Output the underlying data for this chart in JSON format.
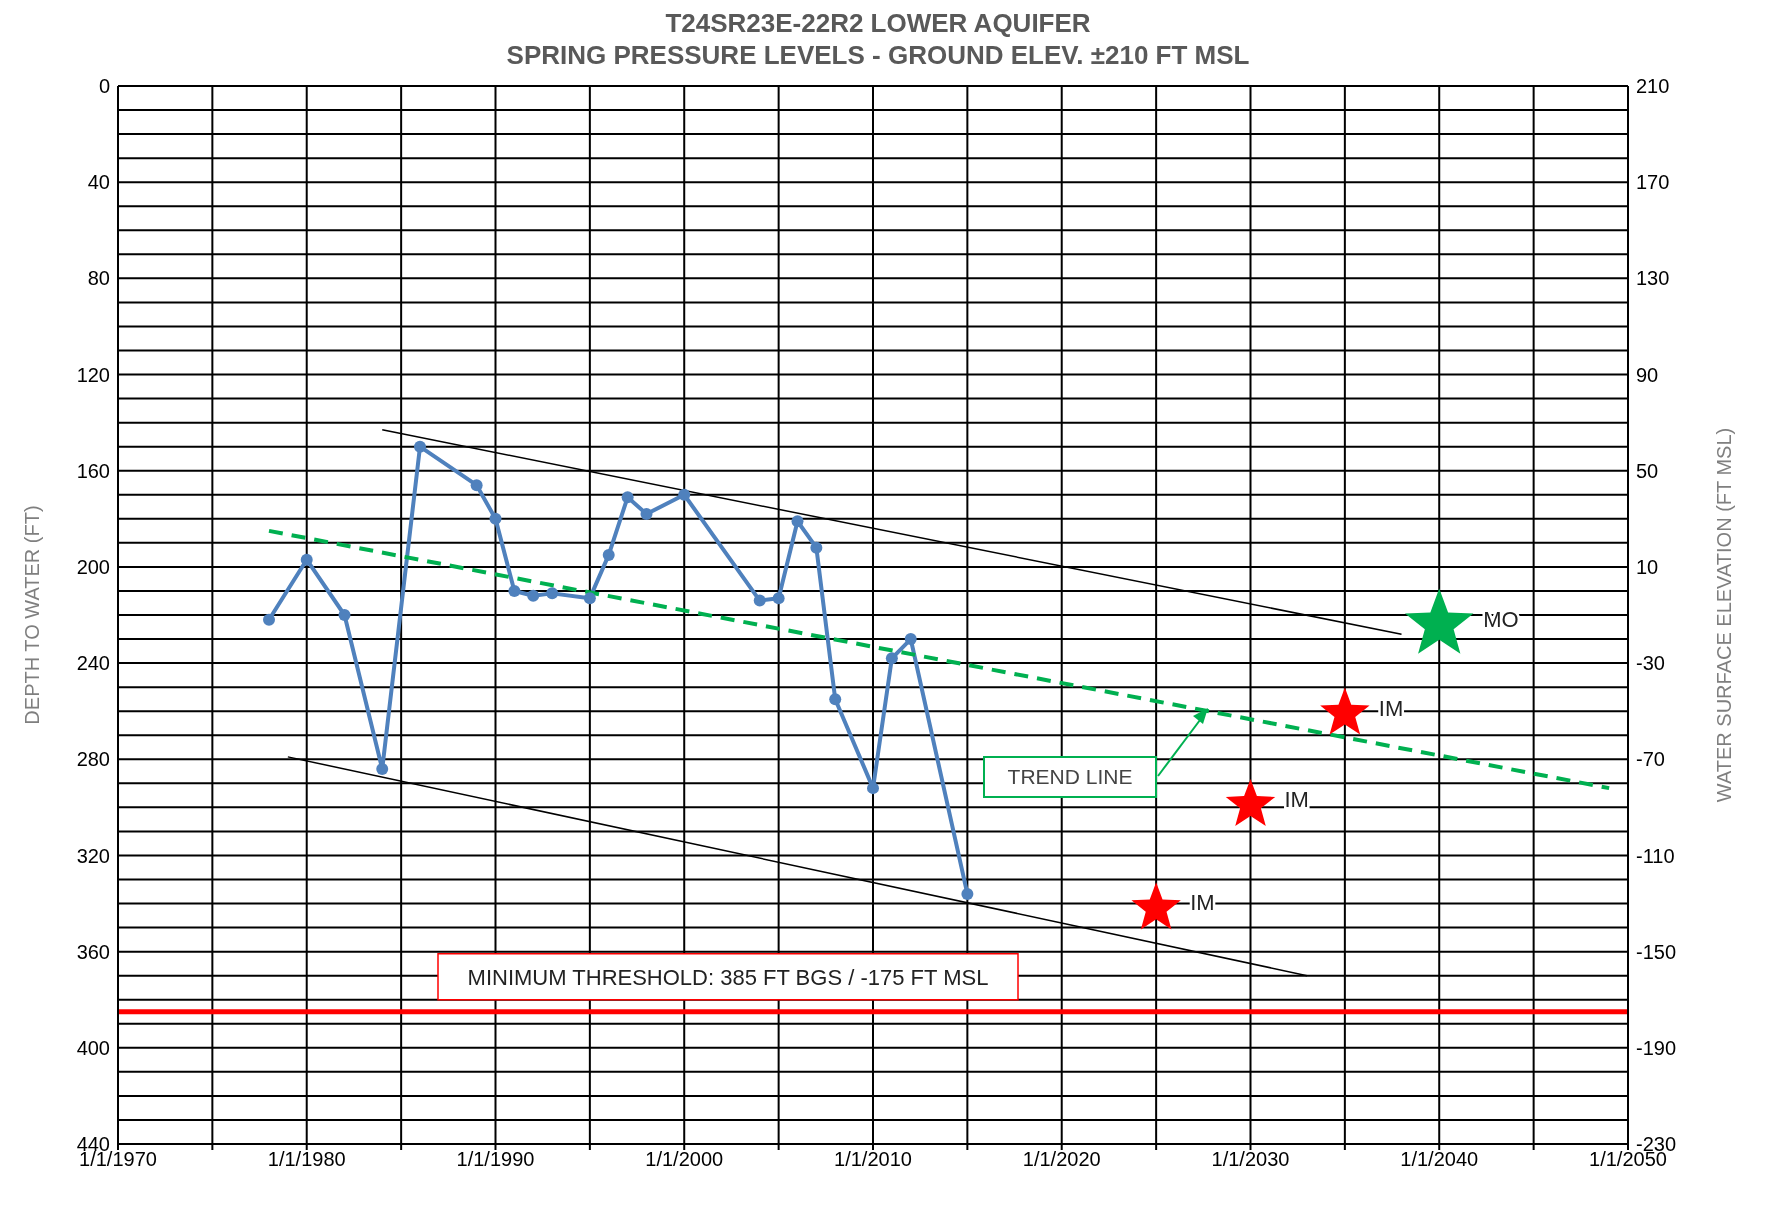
{
  "chart_data": {
    "type": "line",
    "title": "T24SR23E-22R2  LOWER AQUIFER",
    "subtitle": "SPRING PRESSURE LEVELS  - GROUND ELEV. ±210 FT MSL",
    "ylabel": "DEPTH TO WATER (FT)",
    "y2label": "WATER SURFACE ELEVATION (FT MSL)",
    "series": [
      {
        "color": "#4f81bd",
        "marker": "circle",
        "x": [
          "1978",
          "1980",
          "1982",
          "1984",
          "1986",
          "1989",
          "1990",
          "1991",
          "1992",
          "1993",
          "1995",
          "1996",
          "1997",
          "1998",
          "2000",
          "2004",
          "2005",
          "2006",
          "2007",
          "2008",
          "2010",
          "2011",
          "2012",
          "2015"
        ],
        "values": [
          222,
          197,
          220,
          284,
          150,
          166,
          180,
          210,
          212,
          211,
          213,
          195,
          171,
          178,
          170,
          214,
          213,
          181,
          192,
          255,
          292,
          238,
          230,
          336
        ]
      },
      {
        "color": "#00b050",
        "marker": "none",
        "line_style": "dashed",
        "x": [
          "1978",
          "2049"
        ],
        "values": [
          185,
          292
        ]
      },
      {
        "color": "#000000",
        "marker": "none",
        "x": [
          "1984",
          "2038"
        ],
        "values": [
          143,
          228
        ]
      },
      {
        "color": "#000000",
        "marker": "none",
        "x": [
          "1979",
          "2033"
        ],
        "values": [
          279,
          370
        ]
      },
      {
        "type": "scatter",
        "name": "MO",
        "color": "#00b050",
        "marker": "star",
        "x": [
          "2040"
        ],
        "values": [
          224
        ]
      },
      {
        "type": "scatter",
        "name": "IM",
        "color": "#ff0000",
        "marker": "star",
        "x": [
          "2035",
          "2030",
          "2025"
        ],
        "values": [
          261,
          299,
          342
        ]
      }
    ],
    "xlim": [
      "1970-01-01",
      "2050-01-01"
    ],
    "xticks": [
      {
        "value": "1970-01-01",
        "label": "1/1/1970"
      },
      {
        "value": "1975-01-01",
        "label": null
      },
      {
        "value": "1980-01-01",
        "label": "1/1/1980"
      },
      {
        "value": "1985-01-01",
        "label": null
      },
      {
        "value": "1990-01-01",
        "label": "1/1/1990"
      },
      {
        "value": "1995-01-01",
        "label": null
      },
      {
        "value": "2000-01-01",
        "label": "1/1/2000"
      },
      {
        "value": "2005-01-01",
        "label": null
      },
      {
        "value": "2010-01-01",
        "label": "1/1/2010"
      },
      {
        "value": "2015-01-01",
        "label": null
      },
      {
        "value": "2020-01-01",
        "label": "1/1/2020"
      },
      {
        "value": "2025-01-01",
        "label": null
      },
      {
        "value": "2030-01-01",
        "label": "1/1/2030"
      },
      {
        "value": "2035-01-01",
        "label": null
      },
      {
        "value": "2040-01-01",
        "label": "1/1/2040"
      },
      {
        "value": "2045-01-01",
        "label": null
      },
      {
        "value": "2050-01-01",
        "label": "1/1/2050"
      }
    ],
    "ylim": [
      440,
      0
    ],
    "yticks": [
      0,
      {
        "value": 10,
        "label": null
      },
      {
        "value": 20,
        "label": null
      },
      {
        "value": 30,
        "label": null
      },
      40,
      {
        "value": 50,
        "label": null
      },
      {
        "value": 60,
        "label": null
      },
      {
        "value": 70,
        "label": null
      },
      80,
      {
        "value": 90,
        "label": null
      },
      {
        "value": 100,
        "label": null
      },
      {
        "value": 110,
        "label": null
      },
      120,
      {
        "value": 130,
        "label": null
      },
      {
        "value": 140,
        "label": null
      },
      {
        "value": 150,
        "label": null
      },
      160,
      {
        "value": 170,
        "label": null
      },
      {
        "value": 180,
        "label": null
      },
      {
        "value": 190,
        "label": null
      },
      200,
      {
        "value": 210,
        "label": null
      },
      {
        "value": 220,
        "label": null
      },
      {
        "value": 230,
        "label": null
      },
      240,
      {
        "value": 250,
        "label": null
      },
      {
        "value": 260,
        "label": null
      },
      {
        "value": 270,
        "label": null
      },
      280,
      {
        "value": 290,
        "label": null
      },
      {
        "value": 300,
        "label": null
      },
      {
        "value": 310,
        "label": null
      },
      320,
      {
        "value": 330,
        "label": null
      },
      {
        "value": 340,
        "label": null
      },
      {
        "value": 350,
        "label": null
      },
      360,
      {
        "value": 370,
        "label": null
      },
      {
        "value": 380,
        "label": null
      },
      {
        "value": 390,
        "label": null
      },
      400,
      {
        "value": 410,
        "label": null
      },
      {
        "value": 420,
        "label": null
      },
      {
        "value": 430,
        "label": null
      },
      440
    ],
    "y2lim": [
      -230,
      210
    ],
    "y2ticks": [
      210,
      170,
      130,
      90,
      50,
      10,
      -30,
      -70,
      -110,
      -150,
      -190,
      -230
    ],
    "ref_lines": [
      {
        "axis": "y",
        "value": 385,
        "label": "MINIMUM THRESHOLD: 385 FT BGS / -175 FT MSL",
        "color": "#ff0000"
      }
    ],
    "annotations": [
      "TREND LINE"
    ],
    "grid": true,
    "legend": false
  }
}
